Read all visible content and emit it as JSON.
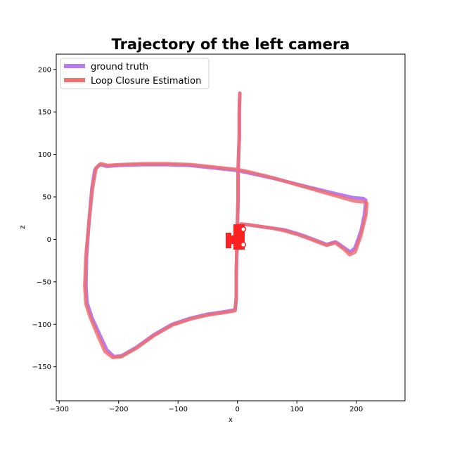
{
  "chart_data": {
    "type": "line",
    "title": "Trajectory of the left camera",
    "xlabel": "x",
    "ylabel": "z",
    "xlim": [
      -305,
      282
    ],
    "ylim": [
      -190,
      218
    ],
    "xticks": [
      -300,
      -200,
      -100,
      0,
      100,
      200
    ],
    "yticks": [
      -150,
      -100,
      -50,
      0,
      50,
      100,
      150,
      200
    ],
    "grid": false,
    "legend_position": "top-left",
    "series": [
      {
        "name": "ground truth",
        "color": "#b77cf0",
        "points": [
          [
            4,
            172
          ],
          [
            3,
            150
          ],
          [
            3,
            120
          ],
          [
            2,
            100
          ],
          [
            1,
            80
          ],
          [
            1,
            50
          ],
          [
            0,
            20
          ],
          [
            -1,
            -10
          ],
          [
            -2,
            -40
          ],
          [
            -2,
            -70
          ],
          [
            -4,
            -83
          ],
          [
            -20,
            -85
          ],
          [
            -50,
            -88
          ],
          [
            -80,
            -93
          ],
          [
            -110,
            -100
          ],
          [
            -140,
            -112
          ],
          [
            -170,
            -127
          ],
          [
            -195,
            -137
          ],
          [
            -208,
            -138
          ],
          [
            -220,
            -130
          ],
          [
            -232,
            -112
          ],
          [
            -245,
            -92
          ],
          [
            -253,
            -75
          ],
          [
            -255,
            -55
          ],
          [
            -254,
            -20
          ],
          [
            -250,
            20
          ],
          [
            -245,
            60
          ],
          [
            -240,
            82
          ],
          [
            -232,
            88
          ],
          [
            -220,
            86
          ],
          [
            -200,
            87
          ],
          [
            -160,
            88
          ],
          [
            -120,
            88
          ],
          [
            -80,
            87
          ],
          [
            -40,
            84
          ],
          [
            0,
            81
          ],
          [
            20,
            78
          ],
          [
            60,
            72
          ],
          [
            100,
            65
          ],
          [
            140,
            58
          ],
          [
            170,
            53
          ],
          [
            195,
            49
          ],
          [
            212,
            48
          ],
          [
            216,
            46
          ],
          [
            214,
            30
          ],
          [
            208,
            10
          ],
          [
            198,
            -10
          ],
          [
            190,
            -15
          ],
          [
            180,
            -10
          ],
          [
            165,
            -3
          ],
          [
            150,
            -6
          ],
          [
            135,
            -2
          ],
          [
            120,
            2
          ],
          [
            100,
            7
          ],
          [
            80,
            11
          ],
          [
            60,
            13
          ],
          [
            40,
            15
          ],
          [
            20,
            17
          ],
          [
            6,
            18
          ],
          [
            5,
            10
          ],
          [
            5,
            0
          ],
          [
            6,
            -10
          ]
        ]
      },
      {
        "name": "Loop Closure Estimation",
        "color": "#f07070",
        "points": [
          [
            4,
            172
          ],
          [
            3,
            150
          ],
          [
            3,
            120
          ],
          [
            2,
            100
          ],
          [
            1,
            80
          ],
          [
            1,
            50
          ],
          [
            0,
            20
          ],
          [
            -1,
            -10
          ],
          [
            -2,
            -40
          ],
          [
            -2,
            -70
          ],
          [
            -4,
            -84
          ],
          [
            -20,
            -86
          ],
          [
            -50,
            -89
          ],
          [
            -80,
            -94
          ],
          [
            -110,
            -101
          ],
          [
            -140,
            -113
          ],
          [
            -170,
            -128
          ],
          [
            -195,
            -138
          ],
          [
            -210,
            -139
          ],
          [
            -223,
            -132
          ],
          [
            -235,
            -113
          ],
          [
            -247,
            -93
          ],
          [
            -255,
            -76
          ],
          [
            -257,
            -55
          ],
          [
            -255,
            -20
          ],
          [
            -250,
            20
          ],
          [
            -244,
            60
          ],
          [
            -238,
            84
          ],
          [
            -230,
            89
          ],
          [
            -218,
            87
          ],
          [
            -198,
            88
          ],
          [
            -158,
            89
          ],
          [
            -118,
            89
          ],
          [
            -78,
            88
          ],
          [
            -38,
            85
          ],
          [
            2,
            82
          ],
          [
            22,
            79
          ],
          [
            62,
            72
          ],
          [
            102,
            64
          ],
          [
            142,
            56
          ],
          [
            172,
            50
          ],
          [
            197,
            45
          ],
          [
            215,
            44
          ],
          [
            218,
            42
          ],
          [
            216,
            28
          ],
          [
            208,
            5
          ],
          [
            198,
            -15
          ],
          [
            189,
            -18
          ],
          [
            180,
            -12
          ],
          [
            165,
            -4
          ],
          [
            150,
            -7
          ],
          [
            135,
            -3
          ],
          [
            120,
            1
          ],
          [
            100,
            6
          ],
          [
            80,
            10
          ],
          [
            60,
            13
          ],
          [
            40,
            15
          ],
          [
            20,
            17
          ],
          [
            6,
            18
          ],
          [
            5,
            10
          ],
          [
            5,
            0
          ],
          [
            6,
            -10
          ]
        ]
      }
    ]
  }
}
